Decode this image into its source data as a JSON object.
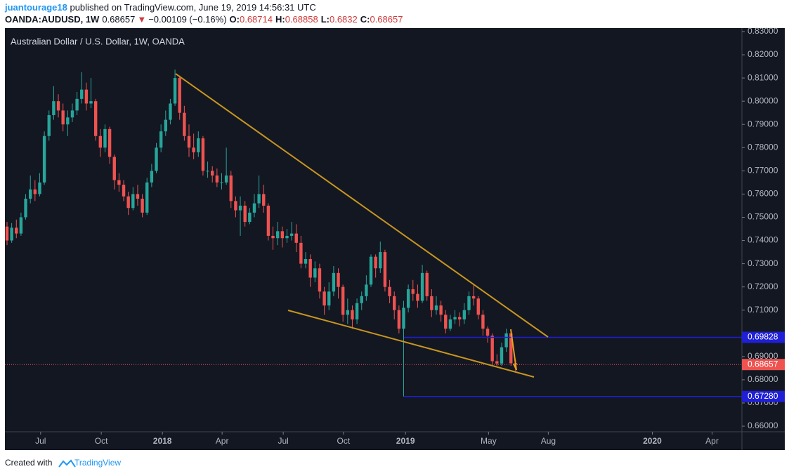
{
  "header": {
    "user": "juantourage18",
    "published": " published on TradingView.com, June 19, 2019 14:56:31 UTC",
    "symbol": "OANDA:AUDUSD, 1W",
    "arrow": "▼",
    "change": "−0.00109 (−0.16%)",
    "o": "O:",
    "h": "H:",
    "l": "L:",
    "c": "C:"
  },
  "chart_data": {
    "type": "candlestick",
    "title": "Australian Dollar / U.S. Dollar, 1W, OANDA",
    "up_color": "#26a69a",
    "down_color": "#ef5350",
    "grid": false,
    "log_scale": false,
    "xlim": [
      -0.45,
      157.5
    ],
    "xticks": [
      {
        "value": 7.2,
        "label": "Jul"
      },
      {
        "value": 20.2,
        "label": "Oct"
      },
      {
        "value": 33.3,
        "label": "2018"
      },
      {
        "value": 46.1,
        "label": "Apr"
      },
      {
        "value": 59.2,
        "label": "Jul"
      },
      {
        "value": 72.1,
        "label": "Oct"
      },
      {
        "value": 85.4,
        "label": "2019"
      },
      {
        "value": 103.2,
        "label": "May"
      },
      {
        "value": 116,
        "label": "Aug"
      },
      {
        "value": 138.3,
        "label": "2020"
      },
      {
        "value": 151.1,
        "label": "Apr"
      }
    ],
    "ylim": [
      0.6576,
      0.8315
    ],
    "yticks": [
      {
        "value": 0.83,
        "label": "0.83000"
      },
      {
        "value": 0.82,
        "label": "0.82000"
      },
      {
        "value": 0.81,
        "label": "0.81000"
      },
      {
        "value": 0.8,
        "label": "0.80000"
      },
      {
        "value": 0.79,
        "label": "0.79000"
      },
      {
        "value": 0.78,
        "label": "0.78000"
      },
      {
        "value": 0.77,
        "label": "0.77000"
      },
      {
        "value": 0.76,
        "label": "0.76000"
      },
      {
        "value": 0.75,
        "label": "0.75000"
      },
      {
        "value": 0.74,
        "label": "0.74000"
      },
      {
        "value": 0.73,
        "label": "0.73000"
      },
      {
        "value": 0.72,
        "label": "0.72000"
      },
      {
        "value": 0.71,
        "label": "0.71000"
      },
      {
        "value": 0.69,
        "label": "0.69000"
      },
      {
        "value": 0.68,
        "label": "0.68000"
      },
      {
        "value": 0.67,
        "label": "0.67000"
      },
      {
        "value": 0.66,
        "label": "0.66000"
      }
    ],
    "levels": [
      {
        "value": 0.69828,
        "label": "0.69828",
        "color": "#1f1fd6"
      },
      {
        "value": 0.6728,
        "label": "0.67280",
        "color": "#1f1fd6"
      }
    ],
    "last_color": "#ef5350",
    "open": [
      0.746,
      0.74,
      0.7455,
      0.743,
      0.75,
      0.758,
      0.762,
      0.76,
      0.765,
      0.785,
      0.794,
      0.8,
      0.796,
      0.79,
      0.793,
      0.796,
      0.801,
      0.805,
      0.799,
      0.8,
      0.785,
      0.78,
      0.788,
      0.776,
      0.766,
      0.764,
      0.759,
      0.754,
      0.76,
      0.758,
      0.752,
      0.765,
      0.77,
      0.78,
      0.787,
      0.792,
      0.799,
      0.81,
      0.795,
      0.785,
      0.78,
      0.778,
      0.784,
      0.77,
      0.77,
      0.768,
      0.765,
      0.765,
      0.768,
      0.757,
      0.753,
      0.755,
      0.748,
      0.752,
      0.756,
      0.76,
      0.755,
      0.742,
      0.741,
      0.744,
      0.741,
      0.742,
      0.743,
      0.739,
      0.73,
      0.732,
      0.724,
      0.728,
      0.718,
      0.712,
      0.718,
      0.726,
      0.72,
      0.708,
      0.71,
      0.706,
      0.713,
      0.716,
      0.721,
      0.733,
      0.728,
      0.735,
      0.72,
      0.716,
      0.71,
      0.702,
      0.711,
      0.719,
      0.717,
      0.714,
      0.726,
      0.716,
      0.71,
      0.712,
      0.708,
      0.702,
      0.706,
      0.707,
      0.706,
      0.71,
      0.716,
      0.715,
      0.708,
      0.702,
      0.699,
      0.688,
      0.687,
      0.694,
      0.7,
      0.68714
    ],
    "high": [
      0.748,
      0.7475,
      0.749,
      0.752,
      0.76,
      0.768,
      0.766,
      0.769,
      0.787,
      0.796,
      0.8065,
      0.803,
      0.799,
      0.796,
      0.799,
      0.804,
      0.8125,
      0.808,
      0.81,
      0.801,
      0.788,
      0.79,
      0.789,
      0.777,
      0.769,
      0.766,
      0.761,
      0.763,
      0.764,
      0.76,
      0.767,
      0.773,
      0.782,
      0.79,
      0.796,
      0.801,
      0.8136,
      0.811,
      0.798,
      0.79,
      0.786,
      0.787,
      0.785,
      0.774,
      0.772,
      0.771,
      0.769,
      0.78,
      0.77,
      0.759,
      0.759,
      0.757,
      0.754,
      0.76,
      0.768,
      0.764,
      0.756,
      0.746,
      0.748,
      0.746,
      0.745,
      0.748,
      0.747,
      0.742,
      0.735,
      0.734,
      0.731,
      0.73,
      0.72,
      0.722,
      0.729,
      0.728,
      0.721,
      0.715,
      0.712,
      0.715,
      0.718,
      0.725,
      0.734,
      0.734,
      0.7395,
      0.736,
      0.723,
      0.718,
      0.712,
      0.714,
      0.721,
      0.723,
      0.721,
      0.7295,
      0.727,
      0.719,
      0.716,
      0.714,
      0.71,
      0.708,
      0.71,
      0.709,
      0.713,
      0.718,
      0.7207,
      0.716,
      0.71,
      0.703,
      0.7,
      0.691,
      0.696,
      0.702,
      0.701,
      0.68858
    ],
    "low": [
      0.738,
      0.739,
      0.741,
      0.742,
      0.749,
      0.756,
      0.757,
      0.759,
      0.764,
      0.783,
      0.792,
      0.793,
      0.787,
      0.785,
      0.791,
      0.794,
      0.799,
      0.796,
      0.797,
      0.783,
      0.776,
      0.778,
      0.773,
      0.762,
      0.761,
      0.757,
      0.751,
      0.753,
      0.755,
      0.75,
      0.751,
      0.763,
      0.769,
      0.778,
      0.785,
      0.79,
      0.798,
      0.792,
      0.783,
      0.776,
      0.775,
      0.776,
      0.768,
      0.767,
      0.765,
      0.763,
      0.762,
      0.764,
      0.754,
      0.75,
      0.742,
      0.746,
      0.747,
      0.75,
      0.754,
      0.752,
      0.74,
      0.736,
      0.738,
      0.737,
      0.739,
      0.74,
      0.735,
      0.728,
      0.728,
      0.72,
      0.722,
      0.715,
      0.708,
      0.71,
      0.716,
      0.715,
      0.705,
      0.704,
      0.702,
      0.704,
      0.71,
      0.714,
      0.72,
      0.724,
      0.726,
      0.718,
      0.713,
      0.706,
      0.7,
      0.6728,
      0.709,
      0.714,
      0.711,
      0.713,
      0.714,
      0.707,
      0.708,
      0.705,
      0.7,
      0.701,
      0.704,
      0.703,
      0.704,
      0.708,
      0.712,
      0.706,
      0.699,
      0.696,
      0.686,
      0.686,
      0.686,
      0.692,
      0.686,
      0.6832
    ],
    "close": [
      0.74,
      0.7455,
      0.743,
      0.75,
      0.758,
      0.762,
      0.76,
      0.765,
      0.785,
      0.794,
      0.8,
      0.796,
      0.79,
      0.793,
      0.796,
      0.801,
      0.805,
      0.799,
      0.8,
      0.785,
      0.78,
      0.788,
      0.776,
      0.766,
      0.764,
      0.759,
      0.754,
      0.76,
      0.758,
      0.752,
      0.765,
      0.77,
      0.78,
      0.787,
      0.792,
      0.799,
      0.81,
      0.795,
      0.785,
      0.78,
      0.778,
      0.784,
      0.77,
      0.77,
      0.768,
      0.765,
      0.765,
      0.768,
      0.757,
      0.753,
      0.755,
      0.748,
      0.752,
      0.756,
      0.76,
      0.755,
      0.742,
      0.741,
      0.744,
      0.741,
      0.742,
      0.743,
      0.739,
      0.73,
      0.732,
      0.724,
      0.728,
      0.718,
      0.712,
      0.718,
      0.726,
      0.72,
      0.708,
      0.71,
      0.706,
      0.713,
      0.716,
      0.721,
      0.733,
      0.728,
      0.735,
      0.72,
      0.716,
      0.71,
      0.702,
      0.711,
      0.719,
      0.717,
      0.714,
      0.726,
      0.716,
      0.71,
      0.712,
      0.708,
      0.702,
      0.706,
      0.707,
      0.706,
      0.71,
      0.716,
      0.715,
      0.708,
      0.702,
      0.699,
      0.688,
      0.687,
      0.694,
      0.7,
      0.6871,
      0.68657
    ]
  },
  "footer": {
    "created": "Created with",
    "brand": "TradingView"
  }
}
